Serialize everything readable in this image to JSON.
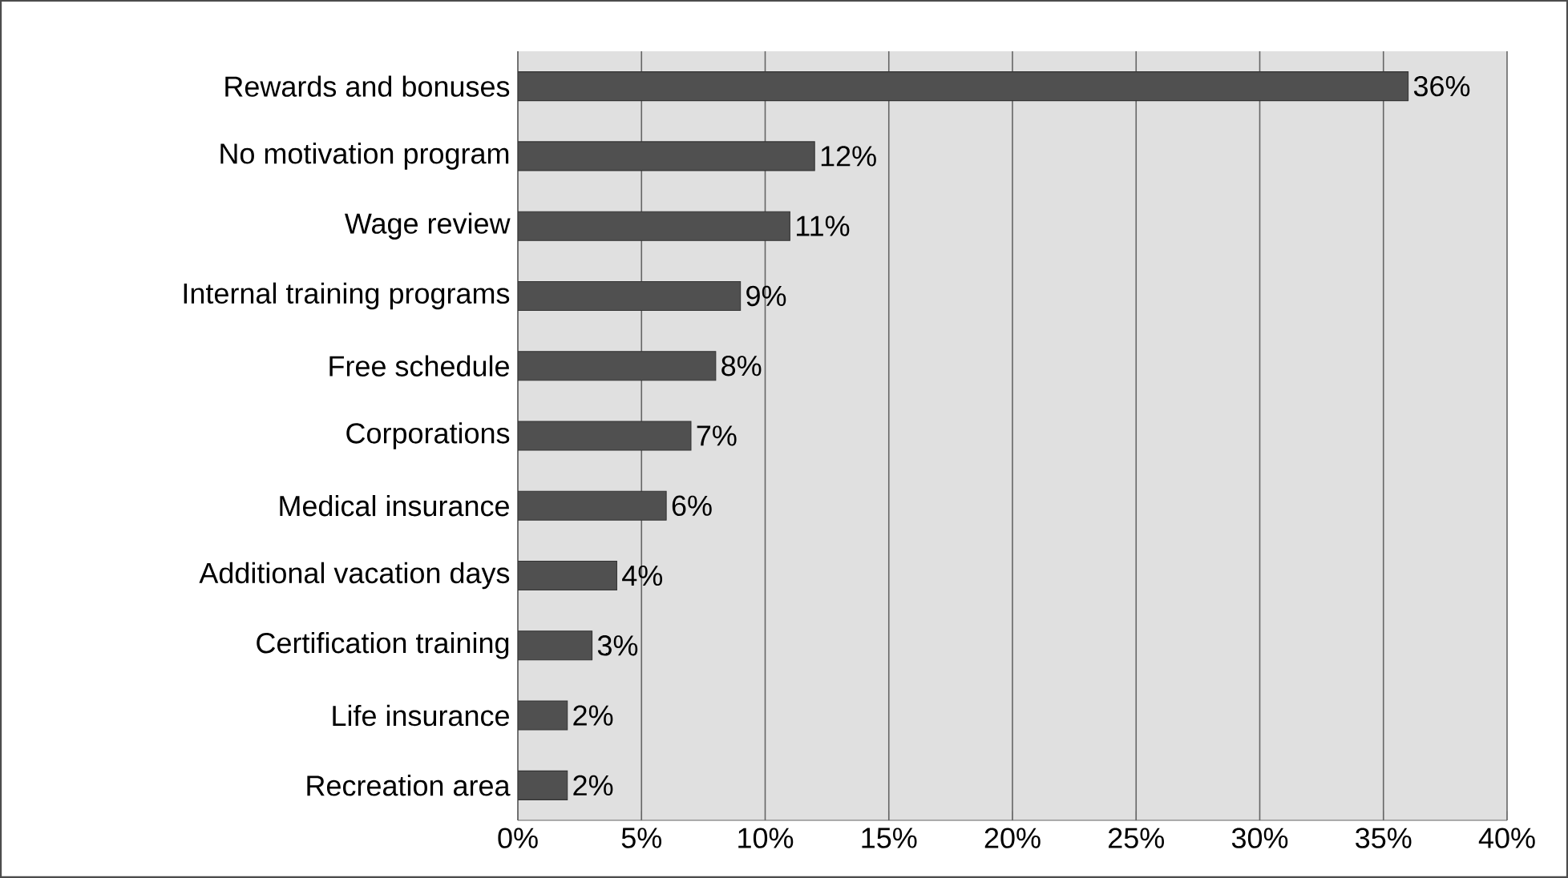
{
  "chart_data": {
    "type": "bar",
    "orientation": "horizontal",
    "categories": [
      "Rewards and bonuses",
      "No motivation program",
      "Wage review",
      "Internal training programs",
      "Free schedule",
      "Corporations",
      "Medical insurance",
      "Additional vacation days",
      "Certification training",
      "Life insurance",
      "Recreation area"
    ],
    "values": [
      36,
      12,
      11,
      9,
      8,
      7,
      6,
      4,
      3,
      2,
      2
    ],
    "value_labels": [
      "36%",
      "12%",
      "11%",
      "9%",
      "8%",
      "7%",
      "6%",
      "4%",
      "3%",
      "2%",
      "2%"
    ],
    "color": "#505050",
    "xlim": [
      0,
      40
    ],
    "xticks": [
      {
        "value": 0,
        "label": "0%"
      },
      {
        "value": 5,
        "label": "5%"
      },
      {
        "value": 10,
        "label": "10%"
      },
      {
        "value": 15,
        "label": "15%"
      },
      {
        "value": 20,
        "label": "20%"
      },
      {
        "value": 25,
        "label": "25%"
      },
      {
        "value": 30,
        "label": "30%"
      },
      {
        "value": 35,
        "label": "35%"
      },
      {
        "value": 40,
        "label": "40%"
      }
    ],
    "grid": "x"
  }
}
